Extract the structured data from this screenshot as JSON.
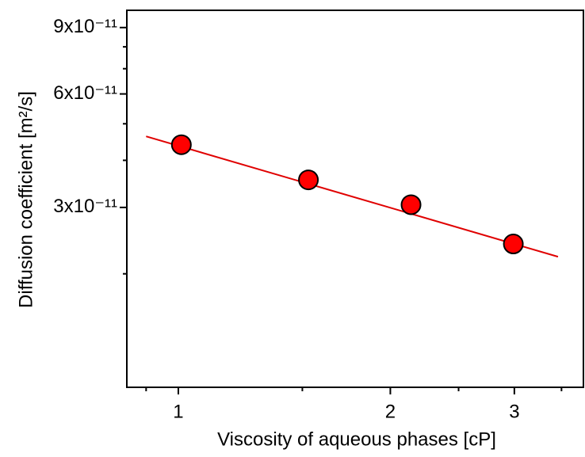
{
  "chart_data": {
    "type": "scatter",
    "xlabel": "Viscosity of aqueous phases [cP]",
    "ylabel": "Diffusion coefficient [m²/s]",
    "xscale": "log",
    "yscale": "log",
    "xlim": [
      0.845,
      3.76
    ],
    "ylim": [
      1e-11,
      1e-10
    ],
    "xticks": [
      1,
      2,
      3
    ],
    "xminorticks": [
      0.9,
      1.5,
      2.5,
      3.5
    ],
    "yticks": [
      {
        "value": 3e-11,
        "label": "3x10⁻¹¹"
      },
      {
        "value": 6e-11,
        "label": "6x10⁻¹¹"
      },
      {
        "value": 9e-11,
        "label": "9x10⁻¹¹"
      }
    ],
    "yminorticks": [
      2e-11,
      4e-11,
      5e-11,
      7e-11,
      8e-11
    ],
    "series": [
      {
        "kind": "line",
        "color": "#e00000",
        "x": [
          0.9,
          3.46
        ],
        "values": [
          4.63e-11,
          2.22e-11
        ]
      },
      {
        "kind": "points",
        "color": "#ff0000",
        "x": [
          1.01,
          1.53,
          2.14,
          2.99
        ],
        "values": [
          4.4e-11,
          3.55e-11,
          3.05e-11,
          2.4e-11
        ]
      }
    ]
  }
}
